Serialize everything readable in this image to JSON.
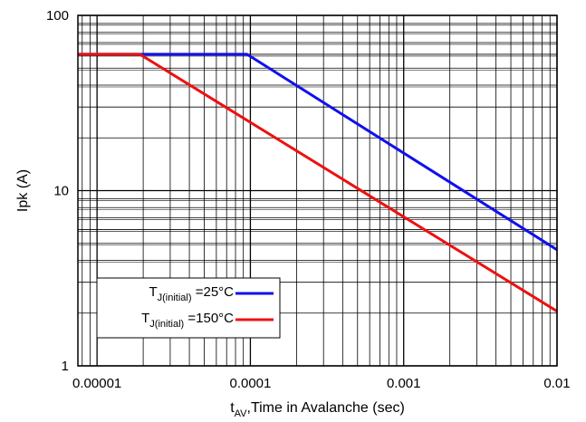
{
  "chart_data": {
    "type": "line",
    "x_scale": "log",
    "y_scale": "log",
    "xlim": [
      7.5e-06,
      0.01
    ],
    "ylim": [
      1,
      100
    ],
    "grid": true,
    "xlabel": {
      "main": "t",
      "sub": "AV",
      "rest": ",Time in Avalanche (sec)"
    },
    "ylabel": "Ipk (A)",
    "x_ticks": [
      {
        "value": 1e-05,
        "label": "0.00001"
      },
      {
        "value": 0.0001,
        "label": "0.0001"
      },
      {
        "value": 0.001,
        "label": "0.001"
      },
      {
        "value": 0.01,
        "label": "0.01"
      }
    ],
    "y_ticks": [
      {
        "value": 1,
        "label": "1"
      },
      {
        "value": 10,
        "label": "10"
      },
      {
        "value": 100,
        "label": "100"
      }
    ],
    "legend_position": "bottom-left",
    "series": [
      {
        "legend": {
          "main": "T",
          "sub": "J(initial)",
          "rest": " =25°C"
        },
        "color": "#1010ee",
        "points": [
          [
            7.5e-06,
            60
          ],
          [
            9.5e-05,
            60
          ],
          [
            0.01,
            4.6
          ]
        ]
      },
      {
        "legend": {
          "main": "T",
          "sub": "J(initial)",
          "rest": " =150°C"
        },
        "color": "#ee1010",
        "points": [
          [
            7.5e-06,
            60
          ],
          [
            1.9e-05,
            60
          ],
          [
            0.01,
            2.05
          ]
        ]
      }
    ]
  }
}
